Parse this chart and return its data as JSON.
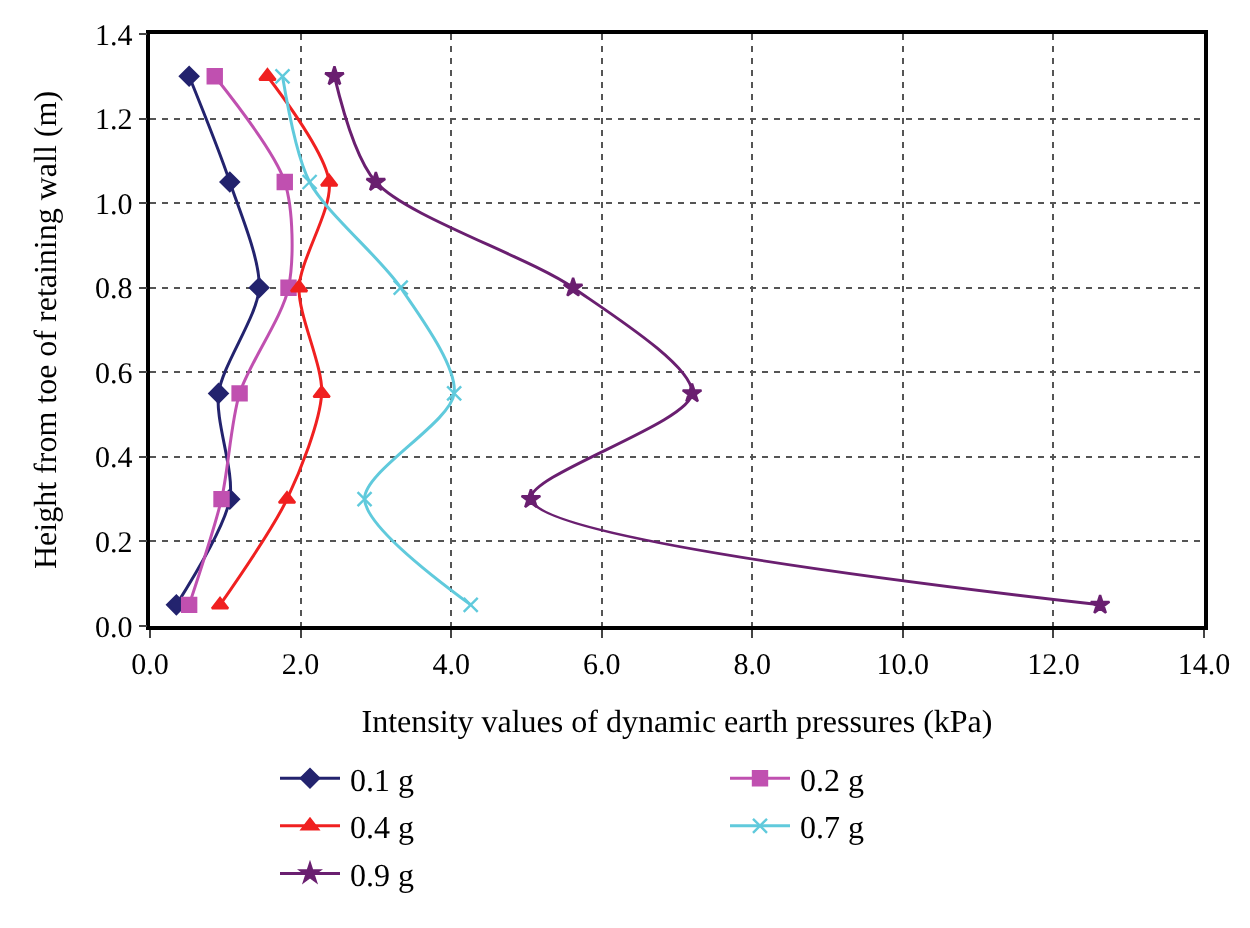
{
  "chart_data": {
    "type": "line",
    "xlabel": "Intensity values of dynamic earth pressures (kPa)",
    "ylabel": "Height from toe of retaining wall (m)",
    "xlim": [
      0,
      14
    ],
    "xticks": [
      {
        "value": 0,
        "label": "0.0"
      },
      {
        "value": 2,
        "label": "2.0"
      },
      {
        "value": 4,
        "label": "4.0"
      },
      {
        "value": 6,
        "label": "6.0"
      },
      {
        "value": 8,
        "label": "8.0"
      },
      {
        "value": 10,
        "label": "10.0"
      },
      {
        "value": 12,
        "label": "12.0"
      },
      {
        "value": 14,
        "label": "14.0"
      }
    ],
    "ylim": [
      0,
      1.4
    ],
    "yticks": [
      {
        "value": 0,
        "label": "0.0"
      },
      0.2,
      0.4,
      0.6,
      0.8,
      {
        "value": 1,
        "label": "1.0"
      },
      1.2,
      1.4
    ],
    "grid": true,
    "legend": "bottom",
    "line_style": "solid",
    "series": [
      {
        "name": "0.1 g",
        "color": "#23236e",
        "marker": "diamond",
        "x": [
          0.52,
          1.06,
          1.45,
          0.91,
          1.06,
          0.35
        ],
        "values": [
          1.3,
          1.05,
          0.8,
          0.55,
          0.3,
          0.05
        ]
      },
      {
        "name": "0.2 g",
        "color": "#c050b0",
        "marker": "square",
        "x": [
          0.86,
          1.79,
          1.84,
          1.19,
          0.95,
          0.52
        ],
        "values": [
          1.3,
          1.05,
          0.8,
          0.55,
          0.3,
          0.05
        ]
      },
      {
        "name": "0.4 g",
        "color": "#f02020",
        "marker": "triangle",
        "x": [
          1.56,
          2.38,
          1.98,
          2.28,
          1.82,
          0.93
        ],
        "values": [
          1.3,
          1.05,
          0.8,
          0.55,
          0.3,
          0.05
        ]
      },
      {
        "name": "0.7 g",
        "color": "#60cadc",
        "marker": "cross",
        "x": [
          1.76,
          2.12,
          3.33,
          4.04,
          2.85,
          4.26
        ],
        "values": [
          1.3,
          1.05,
          0.8,
          0.55,
          0.3,
          0.05
        ]
      },
      {
        "name": "0.9 g",
        "color": "#6a1f70",
        "marker": "star",
        "x": [
          2.45,
          3.0,
          5.62,
          7.2,
          5.06,
          12.62
        ],
        "values": [
          1.3,
          1.05,
          0.8,
          0.55,
          0.3,
          0.05
        ]
      }
    ]
  }
}
